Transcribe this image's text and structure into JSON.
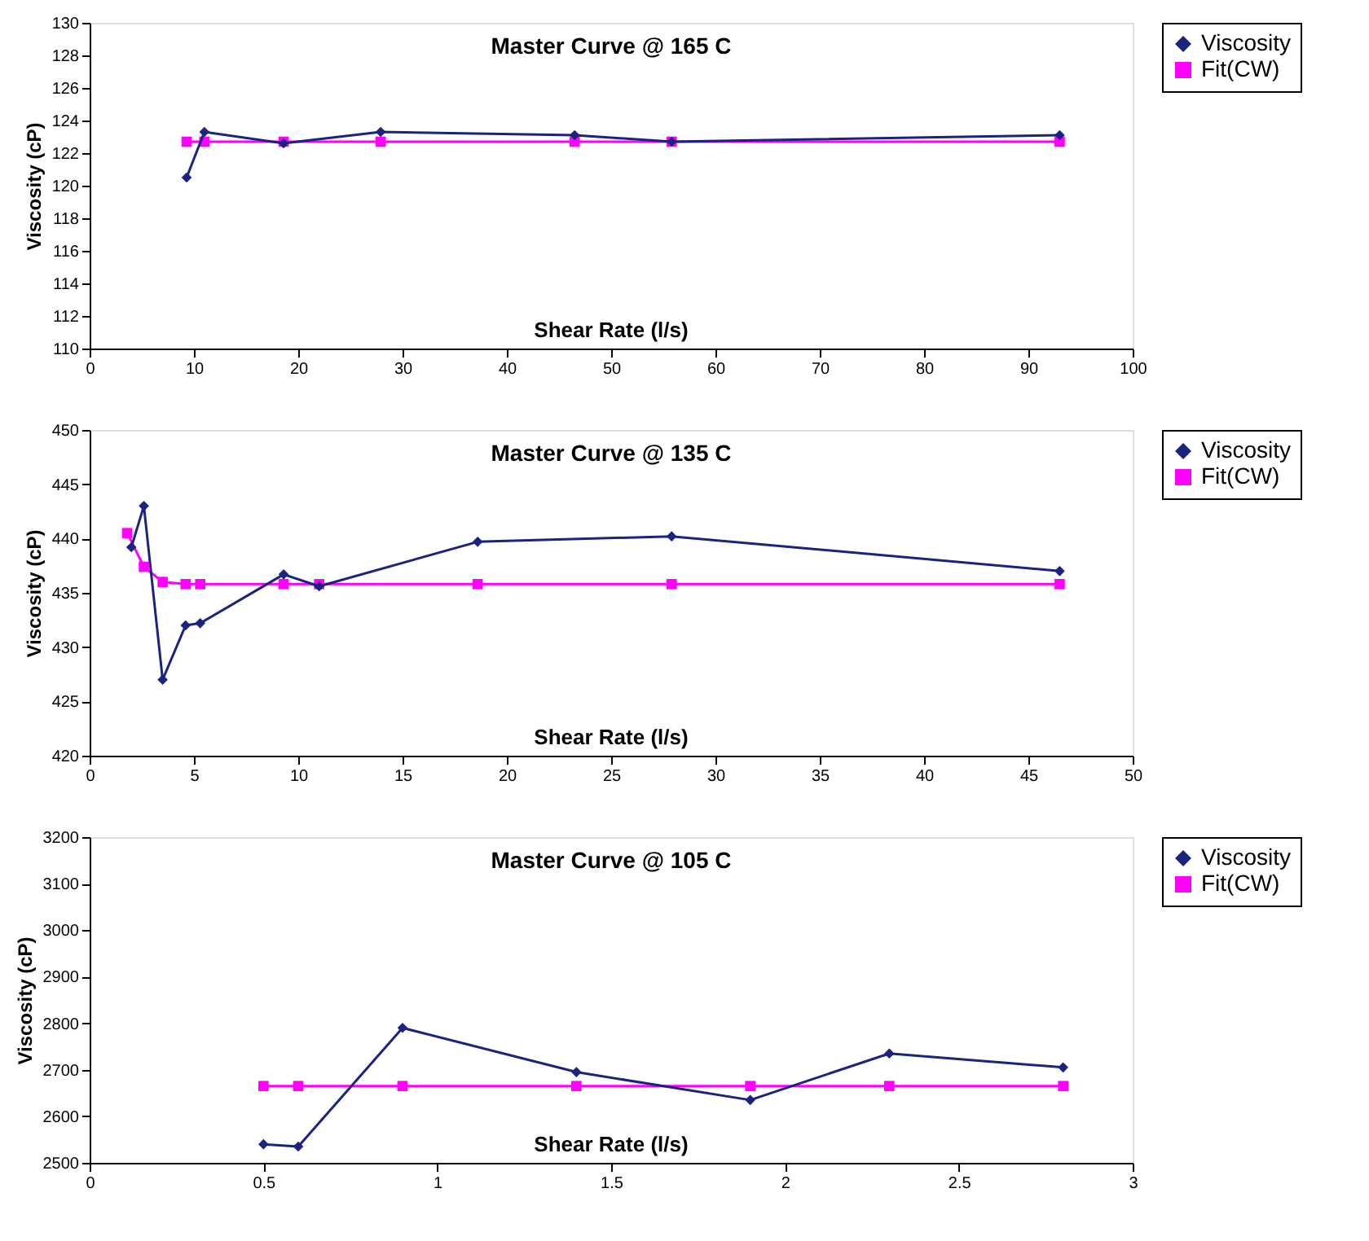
{
  "chart_data": [
    {
      "type": "line",
      "title": "Master Curve @ 165 C",
      "xlabel": "Shear Rate (l/s)",
      "ylabel": "Viscosity (cP)",
      "xlim": [
        0,
        100
      ],
      "xticks": [
        0,
        10,
        20,
        30,
        40,
        50,
        60,
        70,
        80,
        90,
        100
      ],
      "ylim": [
        110,
        130
      ],
      "yticks": [
        110,
        112,
        114,
        116,
        118,
        120,
        122,
        124,
        126,
        128,
        130
      ],
      "grid": false,
      "legend": "right",
      "line_style": "solid",
      "series": [
        {
          "name": "Viscosity",
          "color": "#1a237e",
          "marker": "diamond",
          "x": [
            9.3,
            11.0,
            18.6,
            27.9,
            46.5,
            55.8,
            93.0
          ],
          "values": [
            120.5,
            123.3,
            122.6,
            123.3,
            123.1,
            122.7,
            123.1
          ]
        },
        {
          "name": "Fit(CW)",
          "color": "#ff00ff",
          "marker": "square",
          "x": [
            9.3,
            11.0,
            18.6,
            27.9,
            46.5,
            55.8,
            93.0
          ],
          "values": [
            122.7,
            122.7,
            122.7,
            122.7,
            122.7,
            122.7,
            122.7
          ]
        }
      ]
    },
    {
      "type": "line",
      "title": "Master Curve @ 135 C",
      "xlabel": "Shear Rate (l/s)",
      "ylabel": "Viscosity (cP)",
      "xlim": [
        0,
        50
      ],
      "xticks": [
        0,
        5,
        10,
        15,
        20,
        25,
        30,
        35,
        40,
        45,
        50
      ],
      "ylim": [
        420,
        450
      ],
      "yticks": [
        420,
        425,
        430,
        435,
        440,
        445,
        450
      ],
      "grid": false,
      "legend": "right",
      "line_style": "solid",
      "series": [
        {
          "name": "Viscosity",
          "color": "#1a237e",
          "marker": "diamond",
          "x": [
            2.0,
            2.6,
            3.5,
            4.6,
            5.3,
            9.3,
            11.0,
            18.6,
            27.9,
            46.5
          ],
          "values": [
            439.2,
            443.0,
            427.0,
            432.0,
            432.2,
            436.7,
            435.6,
            439.7,
            440.2,
            437.0
          ]
        },
        {
          "name": "Fit(CW)",
          "color": "#ff00ff",
          "marker": "square",
          "x": [
            1.8,
            2.6,
            3.5,
            4.6,
            5.3,
            9.3,
            11.0,
            18.6,
            27.9,
            46.5
          ],
          "values": [
            440.5,
            437.4,
            436.0,
            435.8,
            435.8,
            435.8,
            435.8,
            435.8,
            435.8,
            435.8
          ]
        }
      ]
    },
    {
      "type": "line",
      "title": "Master Curve @ 105 C",
      "xlabel": "Shear Rate (l/s)",
      "ylabel": "Viscosity (cP)",
      "xlim": [
        0,
        3
      ],
      "xticks": [
        0,
        0.5,
        1,
        1.5,
        2,
        2.5,
        3
      ],
      "ylim": [
        2500,
        3200
      ],
      "yticks": [
        2500,
        2600,
        2700,
        2800,
        2900,
        3000,
        3100,
        3200
      ],
      "grid": false,
      "legend": "right",
      "line_style": "solid",
      "series": [
        {
          "name": "Viscosity",
          "color": "#1a237e",
          "marker": "diamond",
          "x": [
            0.5,
            0.6,
            0.9,
            1.4,
            1.9,
            2.3,
            2.8
          ],
          "values": [
            2540,
            2535,
            2790,
            2695,
            2635,
            2735,
            2705
          ]
        },
        {
          "name": "Fit(CW)",
          "color": "#ff00ff",
          "marker": "square",
          "x": [
            0.5,
            0.6,
            0.9,
            1.4,
            1.9,
            2.3,
            2.8
          ],
          "values": [
            2665,
            2665,
            2665,
            2665,
            2665,
            2665,
            2665
          ]
        }
      ]
    }
  ]
}
